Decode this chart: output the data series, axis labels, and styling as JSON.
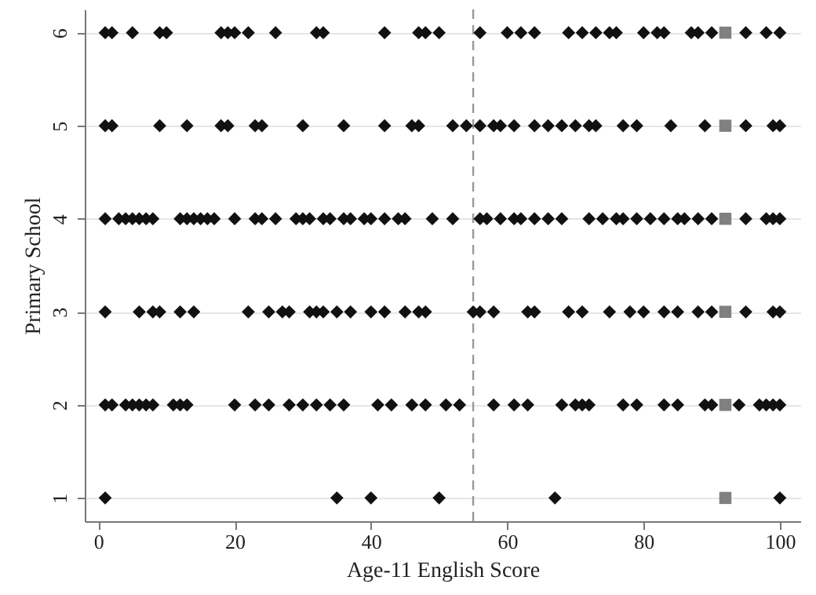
{
  "chart_data": {
    "type": "scatter",
    "xlabel": "Age-11 English Score",
    "ylabel": "Primary School",
    "xlim": [
      -2,
      103
    ],
    "ylim": [
      0.75,
      6.25
    ],
    "xticks": [
      0,
      20,
      40,
      60,
      80,
      100
    ],
    "yticks": [
      1,
      2,
      3,
      4,
      5,
      6
    ],
    "grid": "y",
    "ref_lines": [
      {
        "axis": "x",
        "value": 55,
        "color": "#999999",
        "line_style": "dashed"
      }
    ],
    "series": [
      {
        "color": "#111111",
        "marker": "diamond",
        "x": [
          1,
          2,
          5,
          9,
          10,
          18,
          19,
          20,
          22,
          26,
          32,
          33,
          42,
          47,
          48,
          50,
          56,
          60,
          62,
          64,
          69,
          71,
          73,
          75,
          76,
          80,
          82,
          83,
          87,
          88,
          90,
          95,
          98,
          100
        ],
        "values": [
          6,
          6,
          6,
          6,
          6,
          6,
          6,
          6,
          6,
          6,
          6,
          6,
          6,
          6,
          6,
          6,
          6,
          6,
          6,
          6,
          6,
          6,
          6,
          6,
          6,
          6,
          6,
          6,
          6,
          6,
          6,
          6,
          6,
          6
        ]
      },
      {
        "color": "#111111",
        "marker": "diamond",
        "x": [
          1,
          2,
          9,
          13,
          18,
          19,
          23,
          24,
          30,
          36,
          42,
          46,
          47,
          52,
          54,
          56,
          58,
          59,
          61,
          64,
          66,
          68,
          70,
          72,
          73,
          77,
          79,
          84,
          89,
          95,
          99,
          100
        ],
        "values": [
          5,
          5,
          5,
          5,
          5,
          5,
          5,
          5,
          5,
          5,
          5,
          5,
          5,
          5,
          5,
          5,
          5,
          5,
          5,
          5,
          5,
          5,
          5,
          5,
          5,
          5,
          5,
          5,
          5,
          5,
          5,
          5
        ]
      },
      {
        "color": "#111111",
        "marker": "diamond",
        "x": [
          1,
          3,
          4,
          5,
          6,
          7,
          8,
          12,
          13,
          14,
          15,
          16,
          17,
          20,
          23,
          24,
          26,
          29,
          30,
          31,
          33,
          34,
          36,
          37,
          39,
          40,
          42,
          44,
          45,
          49,
          52,
          56,
          57,
          59,
          61,
          62,
          64,
          66,
          68,
          72,
          74,
          76,
          77,
          79,
          81,
          83,
          85,
          86,
          88,
          90,
          95,
          98,
          99,
          100
        ],
        "values": [
          4,
          4,
          4,
          4,
          4,
          4,
          4,
          4,
          4,
          4,
          4,
          4,
          4,
          4,
          4,
          4,
          4,
          4,
          4,
          4,
          4,
          4,
          4,
          4,
          4,
          4,
          4,
          4,
          4,
          4,
          4,
          4,
          4,
          4,
          4,
          4,
          4,
          4,
          4,
          4,
          4,
          4,
          4,
          4,
          4,
          4,
          4,
          4,
          4,
          4,
          4,
          4,
          4,
          4
        ]
      },
      {
        "color": "#111111",
        "marker": "diamond",
        "x": [
          1,
          6,
          8,
          9,
          12,
          14,
          22,
          25,
          27,
          28,
          31,
          32,
          33,
          35,
          37,
          40,
          42,
          45,
          47,
          48,
          55,
          56,
          58,
          63,
          64,
          69,
          71,
          75,
          78,
          80,
          83,
          85,
          88,
          90,
          95,
          99,
          100
        ],
        "values": [
          3,
          3,
          3,
          3,
          3,
          3,
          3,
          3,
          3,
          3,
          3,
          3,
          3,
          3,
          3,
          3,
          3,
          3,
          3,
          3,
          3,
          3,
          3,
          3,
          3,
          3,
          3,
          3,
          3,
          3,
          3,
          3,
          3,
          3,
          3,
          3,
          3
        ]
      },
      {
        "color": "#111111",
        "marker": "diamond",
        "x": [
          1,
          2,
          4,
          5,
          6,
          7,
          8,
          11,
          12,
          13,
          20,
          23,
          25,
          28,
          30,
          32,
          34,
          36,
          41,
          43,
          46,
          48,
          51,
          53,
          58,
          61,
          63,
          68,
          70,
          71,
          72,
          77,
          79,
          83,
          85,
          89,
          90,
          94,
          97,
          98,
          99,
          100
        ],
        "values": [
          2,
          2,
          2,
          2,
          2,
          2,
          2,
          2,
          2,
          2,
          2,
          2,
          2,
          2,
          2,
          2,
          2,
          2,
          2,
          2,
          2,
          2,
          2,
          2,
          2,
          2,
          2,
          2,
          2,
          2,
          2,
          2,
          2,
          2,
          2,
          2,
          2,
          2,
          2,
          2,
          2,
          2
        ]
      },
      {
        "color": "#111111",
        "marker": "diamond",
        "x": [
          1,
          35,
          40,
          50,
          67,
          100
        ],
        "values": [
          1,
          1,
          1,
          1,
          1,
          1
        ]
      },
      {
        "color": "#808080",
        "marker": "square",
        "x": [
          92,
          92,
          92,
          92,
          92,
          92
        ],
        "values": [
          1,
          2,
          3,
          4,
          5,
          6
        ]
      }
    ]
  }
}
